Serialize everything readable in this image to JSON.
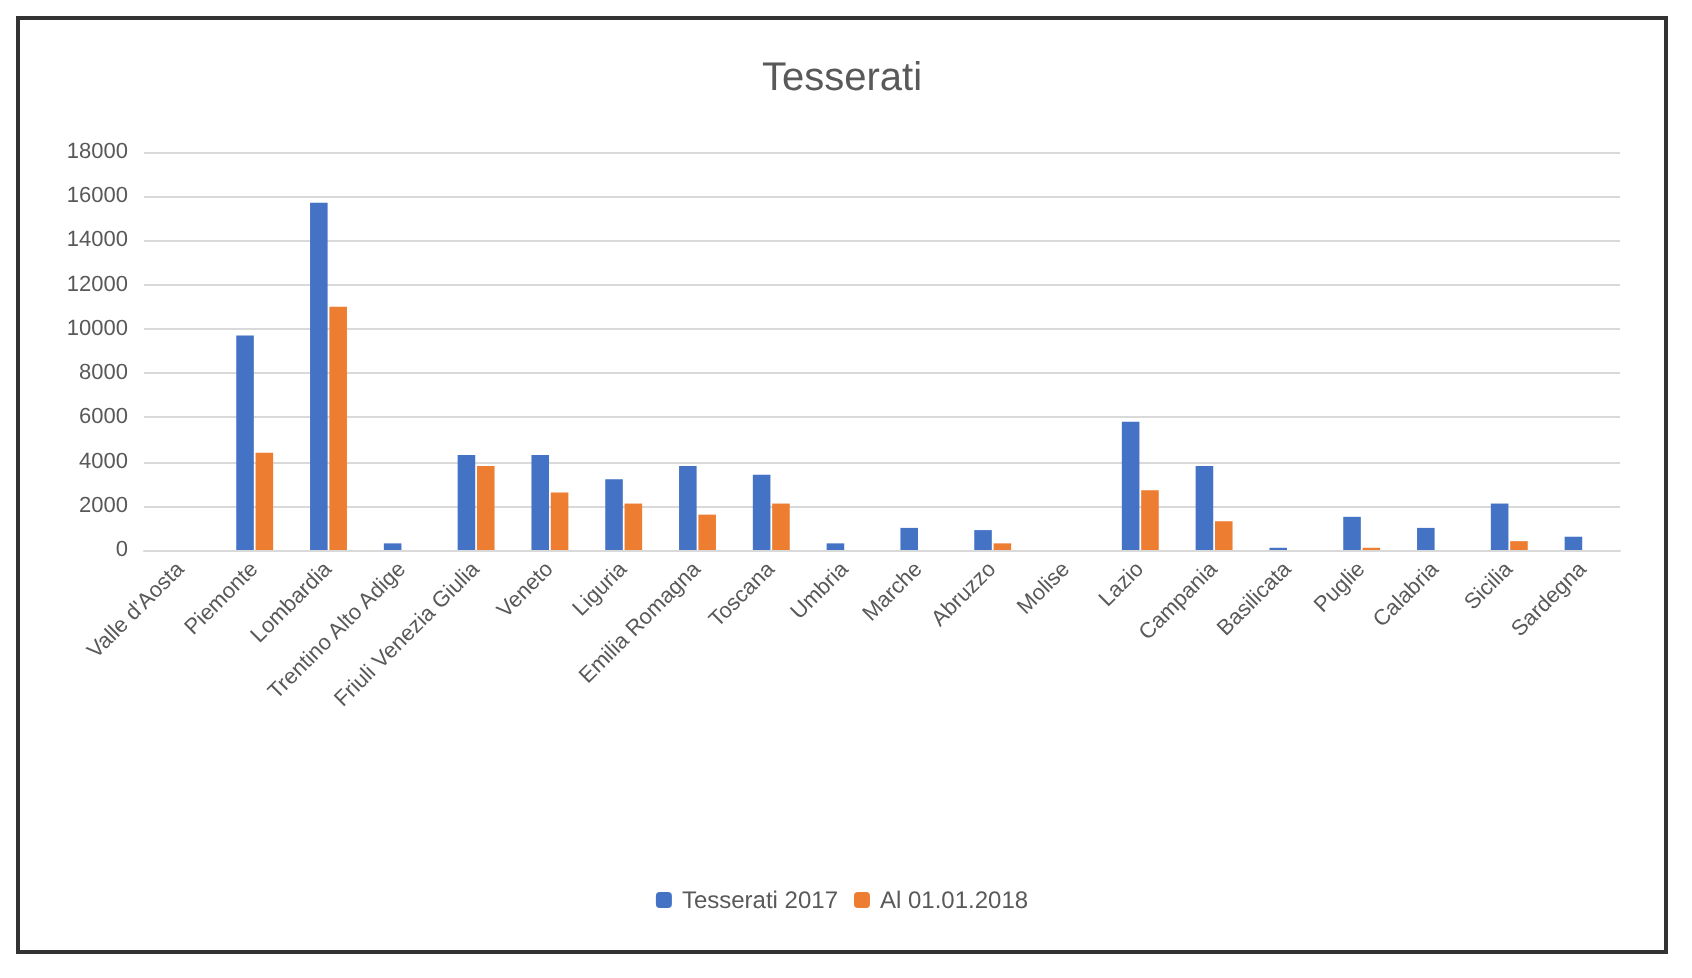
{
  "chart_data": {
    "type": "bar",
    "title": "Tesserati",
    "categories": [
      "Valle d'Aosta",
      "Piemonte",
      "Lombardia",
      "Trentino Alto Adige",
      "Friuli Venezia Giulia",
      "Veneto",
      "Liguria",
      "Emilia Romagna",
      "Toscana",
      "Umbria",
      "Marche",
      "Abruzzo",
      "Molise",
      "Lazio",
      "Campania",
      "Basilicata",
      "Puglie",
      "Calabria",
      "Sicilia",
      "Sardegna"
    ],
    "series": [
      {
        "name": "Tesserati 2017",
        "color": "#4472c4",
        "values": [
          0,
          9700,
          15700,
          300,
          4300,
          4300,
          3200,
          3800,
          3400,
          300,
          1000,
          900,
          0,
          5800,
          3800,
          100,
          1500,
          1000,
          2100,
          600
        ]
      },
      {
        "name": "Al 01.01.2018",
        "color": "#ed7d31",
        "values": [
          0,
          4400,
          11000,
          0,
          3800,
          2600,
          2100,
          1600,
          2100,
          0,
          0,
          300,
          0,
          2700,
          1300,
          0,
          100,
          0,
          400,
          0
        ]
      }
    ],
    "ylim": [
      0,
      18000
    ],
    "yticks": [
      0,
      2000,
      4000,
      6000,
      8000,
      10000,
      12000,
      14000,
      16000,
      18000
    ],
    "grid": "y",
    "legend": "bottom"
  }
}
